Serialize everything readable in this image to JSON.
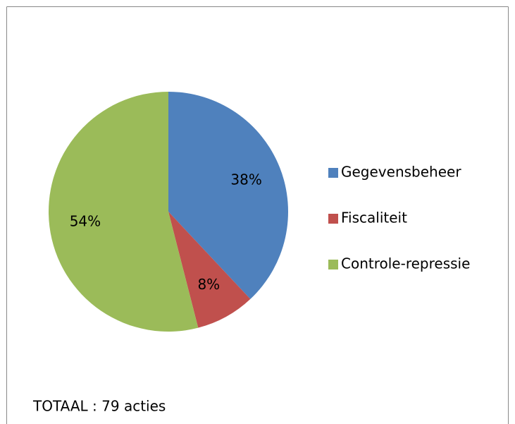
{
  "chart_data": {
    "type": "pie",
    "categories": [
      "Gegevensbeheer",
      "Fiscaliteit",
      "Controle-repressie"
    ],
    "values": [
      38,
      8,
      54
    ],
    "value_labels": [
      "38%",
      "8%",
      "54%"
    ],
    "colors": [
      "#4f81bd",
      "#c0504d",
      "#9bbb59"
    ],
    "legend": "right",
    "annotation": "TOTAAL : 79 acties"
  }
}
